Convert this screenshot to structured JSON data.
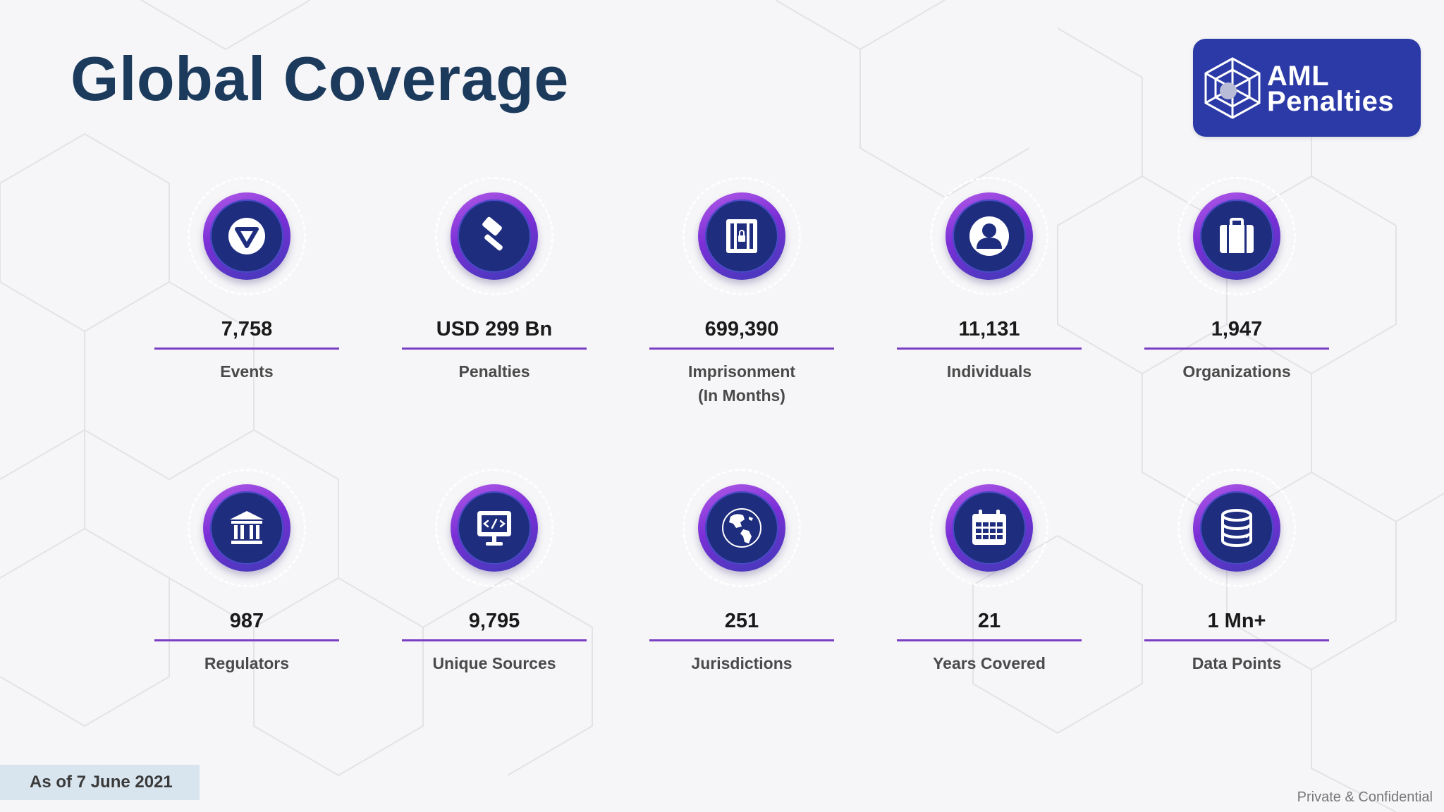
{
  "title": "Global Coverage",
  "logo": {
    "line1": "AML",
    "line2": "Penalties",
    "background": "#2b3aa6"
  },
  "stats": [
    {
      "icon": "triangle-icon",
      "value": "7,758",
      "label": "Events"
    },
    {
      "icon": "gavel-icon",
      "value": "USD 299 Bn",
      "label": "Penalties"
    },
    {
      "icon": "prison-icon",
      "value": "699,390",
      "label": "Imprisonment",
      "label2": "(In Months)"
    },
    {
      "icon": "person-icon",
      "value": "11,131",
      "label": "Individuals"
    },
    {
      "icon": "briefcase-icon",
      "value": "1,947",
      "label": "Organizations"
    },
    {
      "icon": "bank-icon",
      "value": "987",
      "label": "Regulators"
    },
    {
      "icon": "code-monitor-icon",
      "value": "9,795",
      "label": "Unique Sources"
    },
    {
      "icon": "globe-icon",
      "value": "251",
      "label": "Jurisdictions"
    },
    {
      "icon": "calendar-icon",
      "value": "21",
      "label": "Years Covered"
    },
    {
      "icon": "database-icon",
      "value": "1 Mn+",
      "label": "Data Points"
    }
  ],
  "footer": {
    "as_of": "As of 7 June 2021",
    "confidential": "Private & Confidential"
  },
  "colors": {
    "title": "#1b3a5c",
    "accent": "#7b3fc4",
    "icon_disc": "#1f2d7e"
  }
}
